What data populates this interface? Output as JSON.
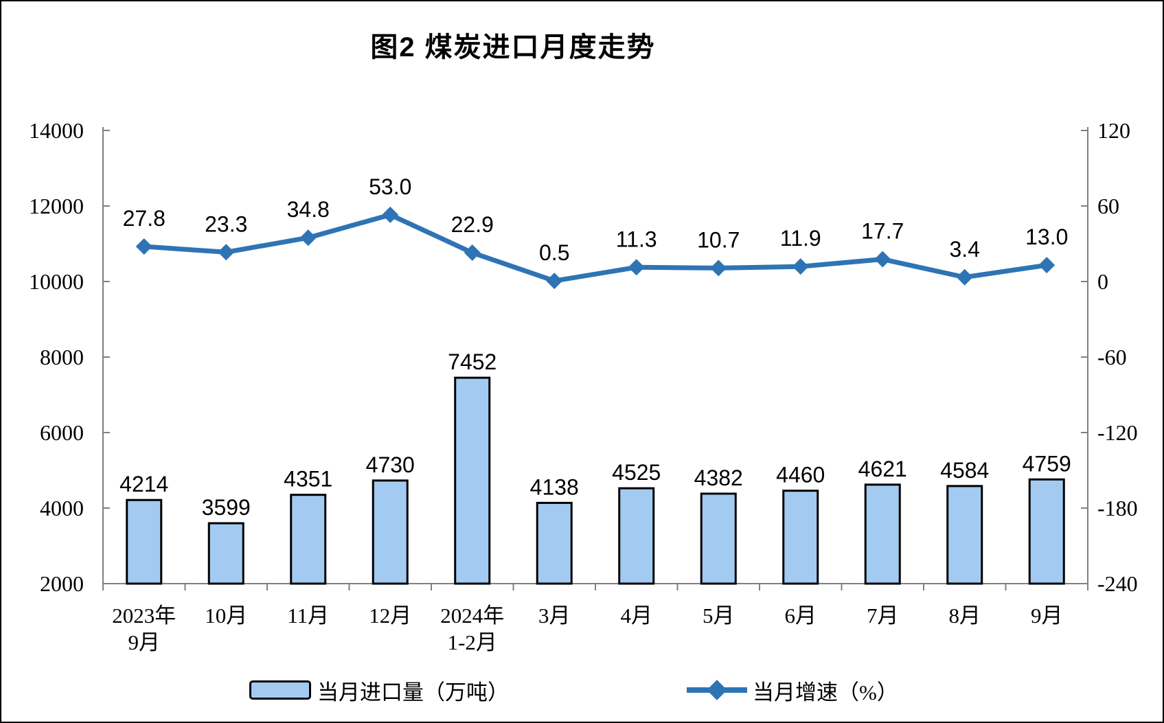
{
  "page": {
    "title": "图2 煤炭进口月度走势"
  },
  "colors": {
    "bar_fill": "#A3CBF1",
    "bar_stroke": "#000000",
    "line_color": "#2E74B5",
    "axis_color": "#808080",
    "text_color": "#000000"
  },
  "legend": {
    "bar_label": "当月进口量（万吨）",
    "line_label": "当月增速（%）"
  },
  "chart_data": {
    "type": "combo-bar-line",
    "title": "图2 煤炭进口月度走势",
    "grid": false,
    "legend_position": "bottom",
    "categories": [
      "2023年9月",
      "10月",
      "11月",
      "12月",
      "2024年1-2月",
      "3月",
      "4月",
      "5月",
      "6月",
      "7月",
      "8月",
      "9月"
    ],
    "category_label_lines": [
      [
        "2023年",
        "9月"
      ],
      [
        "10月"
      ],
      [
        "11月"
      ],
      [
        "12月"
      ],
      [
        "2024年",
        "1-2月"
      ],
      [
        "3月"
      ],
      [
        "4月"
      ],
      [
        "5月"
      ],
      [
        "6月"
      ],
      [
        "7月"
      ],
      [
        "8月"
      ],
      [
        "9月"
      ]
    ],
    "series": [
      {
        "name": "当月进口量（万吨）",
        "type": "bar",
        "axis": "left",
        "values": [
          4214,
          3599,
          4351,
          4730,
          7452,
          4138,
          4525,
          4382,
          4460,
          4621,
          4584,
          4759
        ],
        "labels": [
          "4214",
          "3599",
          "4351",
          "4730",
          "7452",
          "4138",
          "4525",
          "4382",
          "4460",
          "4621",
          "4584",
          "4759"
        ]
      },
      {
        "name": "当月增速（%）",
        "type": "line",
        "axis": "right",
        "marker": "diamond",
        "values": [
          27.8,
          23.3,
          34.8,
          53.0,
          22.9,
          0.5,
          11.3,
          10.7,
          11.9,
          17.7,
          3.4,
          13.0
        ],
        "labels": [
          "27.8",
          "23.3",
          "34.8",
          "53.0",
          "22.9",
          "0.5",
          "11.3",
          "10.7",
          "11.9",
          "17.7",
          "3.4",
          "13.0"
        ]
      }
    ],
    "left_axis": {
      "min": 2000,
      "max": 14000,
      "step": 2000,
      "tick_labels": [
        "2000",
        "4000",
        "6000",
        "8000",
        "10000",
        "12000",
        "14000"
      ]
    },
    "right_axis": {
      "min": -240,
      "max": 120,
      "step": 60,
      "tick_labels": [
        "-240",
        "-180",
        "-120",
        "-60",
        "0",
        "60",
        "120"
      ]
    }
  }
}
